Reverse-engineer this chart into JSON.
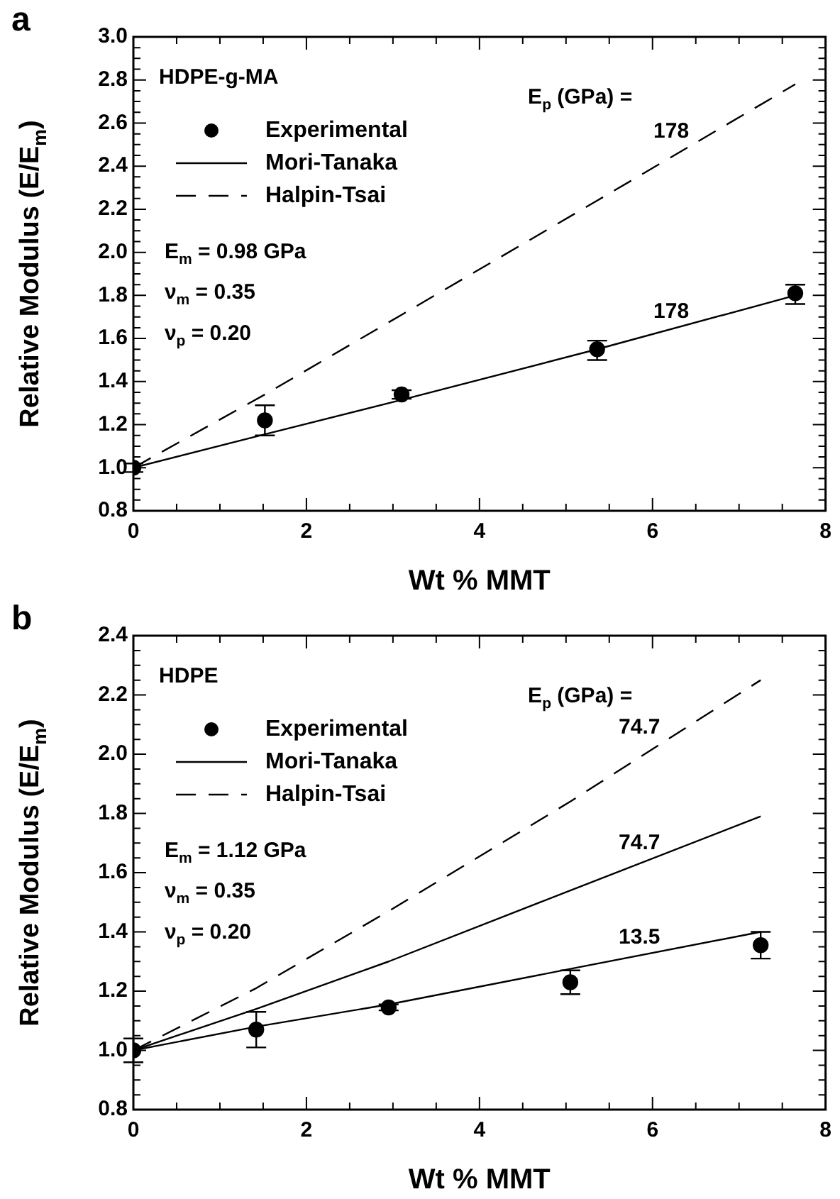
{
  "chart_data": [
    {
      "type": "scatter",
      "title": "a",
      "xlabel": "Wt % MMT",
      "ylabel": "Relative Modulus (E/E$_{m}$)",
      "legend": "top left",
      "xlim": [
        0,
        8
      ],
      "ylim": [
        0.8,
        3.0
      ],
      "xticks": [
        0,
        {
          "value": 0.5,
          "label": null
        },
        {
          "value": 1,
          "label": null
        },
        {
          "value": 1.5,
          "label": null
        },
        2,
        {
          "value": 2.5,
          "label": null
        },
        {
          "value": 3,
          "label": null
        },
        {
          "value": 3.5,
          "label": null
        },
        4,
        {
          "value": 4.5,
          "label": null
        },
        {
          "value": 5,
          "label": null
        },
        {
          "value": 5.5,
          "label": null
        },
        6,
        {
          "value": 6.5,
          "label": null
        },
        {
          "value": 7,
          "label": null
        },
        {
          "value": 7.5,
          "label": null
        },
        8
      ],
      "yticks": [
        0.8,
        {
          "value": 0.85,
          "label": null
        },
        {
          "value": 0.9,
          "label": null
        },
        {
          "value": 0.95,
          "label": null
        },
        {
          "value": 1,
          "label": "1.0"
        },
        {
          "value": 1.05,
          "label": null
        },
        {
          "value": 1.1,
          "label": null
        },
        {
          "value": 1.15,
          "label": null
        },
        1.2,
        {
          "value": 1.25,
          "label": null
        },
        {
          "value": 1.3,
          "label": null
        },
        {
          "value": 1.35,
          "label": null
        },
        1.4,
        {
          "value": 1.45,
          "label": null
        },
        {
          "value": 1.5,
          "label": null
        },
        {
          "value": 1.55,
          "label": null
        },
        1.6,
        {
          "value": 1.65,
          "label": null
        },
        {
          "value": 1.7,
          "label": null
        },
        {
          "value": 1.75,
          "label": null
        },
        1.8,
        {
          "value": 1.85,
          "label": null
        },
        {
          "value": 1.9,
          "label": null
        },
        {
          "value": 1.95,
          "label": null
        },
        {
          "value": 2,
          "label": "2.0"
        },
        {
          "value": 2.05,
          "label": null
        },
        {
          "value": 2.1,
          "label": null
        },
        {
          "value": 2.15,
          "label": null
        },
        2.2,
        {
          "value": 2.25,
          "label": null
        },
        {
          "value": 2.3,
          "label": null
        },
        {
          "value": 2.35,
          "label": null
        },
        2.4,
        {
          "value": 2.45,
          "label": null
        },
        {
          "value": 2.5,
          "label": null
        },
        {
          "value": 2.55,
          "label": null
        },
        2.6,
        {
          "value": 2.65,
          "label": null
        },
        {
          "value": 2.7,
          "label": null
        },
        {
          "value": 2.75,
          "label": null
        },
        2.8,
        {
          "value": 2.85,
          "label": null
        },
        {
          "value": 2.9,
          "label": null
        },
        {
          "value": 2.95,
          "label": null
        },
        {
          "value": 3,
          "label": "3.0"
        }
      ],
      "series": [
        {
          "name": "Experimental",
          "type": "scatter",
          "marker": "circle",
          "color": "#000000",
          "x": [
            0,
            1.52,
            3.1,
            5.36,
            7.65
          ],
          "values": [
            1.0,
            1.22,
            1.34,
            1.55,
            1.81
          ],
          "errors": [
            0.02,
            [
              1.15,
              1.29
            ],
            0.02,
            [
              1.5,
              1.59
            ],
            [
              1.76,
              1.85
            ]
          ]
        },
        {
          "name": "Mori-Tanaka",
          "type": "line",
          "marker": "none",
          "line_style": "solid",
          "color": "#000000",
          "x": [
            0,
            1.52,
            3.1,
            5.36,
            7.65
          ],
          "values": [
            1.0,
            1.155,
            1.315,
            1.55,
            1.8
          ]
        },
        {
          "name": "Halpin-Tsai",
          "type": "line",
          "marker": "none",
          "line_style": "dashed",
          "color": "#000000",
          "x": [
            0,
            1.52,
            3.1,
            5.36,
            7.65
          ],
          "values": [
            1.0,
            1.34,
            1.71,
            2.24,
            2.78
          ]
        }
      ],
      "annotations": [
        "HDPE-g-MA",
        "E$_{m}$ = 0.98 GPa",
        "ν$_{m}$ = 0.35",
        "ν$_{p}$ = 0.20",
        "178",
        "178",
        "E$_{p}$ (GPa) ="
      ]
    },
    {
      "type": "scatter",
      "title": "b",
      "xlabel": "Wt % MMT",
      "ylabel": "Relative Modulus (E/E$_{m}$)",
      "legend": "top left",
      "xlim": [
        0,
        8
      ],
      "ylim": [
        0.8,
        2.4
      ],
      "xticks": [
        0,
        {
          "value": 0.5,
          "label": null
        },
        {
          "value": 1,
          "label": null
        },
        {
          "value": 1.5,
          "label": null
        },
        2,
        {
          "value": 2.5,
          "label": null
        },
        {
          "value": 3,
          "label": null
        },
        {
          "value": 3.5,
          "label": null
        },
        4,
        {
          "value": 4.5,
          "label": null
        },
        {
          "value": 5,
          "label": null
        },
        {
          "value": 5.5,
          "label": null
        },
        6,
        {
          "value": 6.5,
          "label": null
        },
        {
          "value": 7,
          "label": null
        },
        {
          "value": 7.5,
          "label": null
        },
        8
      ],
      "yticks": [
        0.8,
        {
          "value": 0.85,
          "label": null
        },
        {
          "value": 0.9,
          "label": null
        },
        {
          "value": 0.95,
          "label": null
        },
        {
          "value": 1,
          "label": "1.0"
        },
        {
          "value": 1.05,
          "label": null
        },
        {
          "value": 1.1,
          "label": null
        },
        {
          "value": 1.15,
          "label": null
        },
        1.2,
        {
          "value": 1.25,
          "label": null
        },
        {
          "value": 1.3,
          "label": null
        },
        {
          "value": 1.35,
          "label": null
        },
        1.4,
        {
          "value": 1.45,
          "label": null
        },
        {
          "value": 1.5,
          "label": null
        },
        {
          "value": 1.55,
          "label": null
        },
        1.6,
        {
          "value": 1.65,
          "label": null
        },
        {
          "value": 1.7,
          "label": null
        },
        {
          "value": 1.75,
          "label": null
        },
        1.8,
        {
          "value": 1.85,
          "label": null
        },
        {
          "value": 1.9,
          "label": null
        },
        {
          "value": 1.95,
          "label": null
        },
        {
          "value": 2,
          "label": "2.0"
        },
        {
          "value": 2.05,
          "label": null
        },
        {
          "value": 2.1,
          "label": null
        },
        {
          "value": 2.15,
          "label": null
        },
        2.2,
        {
          "value": 2.25,
          "label": null
        },
        {
          "value": 2.3,
          "label": null
        },
        {
          "value": 2.35,
          "label": null
        },
        2.4
      ],
      "series": [
        {
          "name": "Experimental",
          "type": "scatter",
          "marker": "circle",
          "color": "#000000",
          "x": [
            0,
            1.42,
            2.95,
            5.05,
            7.25
          ],
          "values": [
            1.0,
            1.07,
            1.145,
            1.23,
            1.355
          ],
          "errors": [
            [
              0.96,
              1.04
            ],
            [
              1.01,
              1.13
            ],
            0.01,
            [
              1.19,
              1.27
            ],
            [
              1.31,
              1.4
            ]
          ]
        },
        {
          "name": "Mori-Tanaka",
          "type": "line",
          "marker": "none",
          "line_style": "solid",
          "color": "#000000",
          "x": [
            0,
            1.42,
            2.95,
            5.05,
            7.25
          ],
          "values": [
            1.0,
            1.14,
            1.3,
            1.54,
            1.79
          ]
        },
        {
          "name": "Halpin-Tsai",
          "type": "line",
          "marker": "none",
          "line_style": "dashed",
          "color": "#000000",
          "x": [
            0,
            1.42,
            2.95,
            5.05,
            7.25
          ],
          "values": [
            1.0,
            1.21,
            1.47,
            1.84,
            2.25
          ]
        },
        {
          "type": "line",
          "marker": "none",
          "line_style": "solid",
          "color": "#000000",
          "x": [
            0,
            1.42,
            2.95,
            5.05,
            7.25
          ],
          "values": [
            1.0,
            1.08,
            1.155,
            1.275,
            1.4
          ]
        }
      ],
      "annotations": [
        "HDPE",
        "E$_{m}$ = 1.12 GPa",
        "ν$_{m}$ = 0.35",
        "ν$_{p}$ = 0.20",
        "74.7",
        "74.7",
        "13.5",
        "E$_{p}$ (GPa) ="
      ]
    }
  ]
}
